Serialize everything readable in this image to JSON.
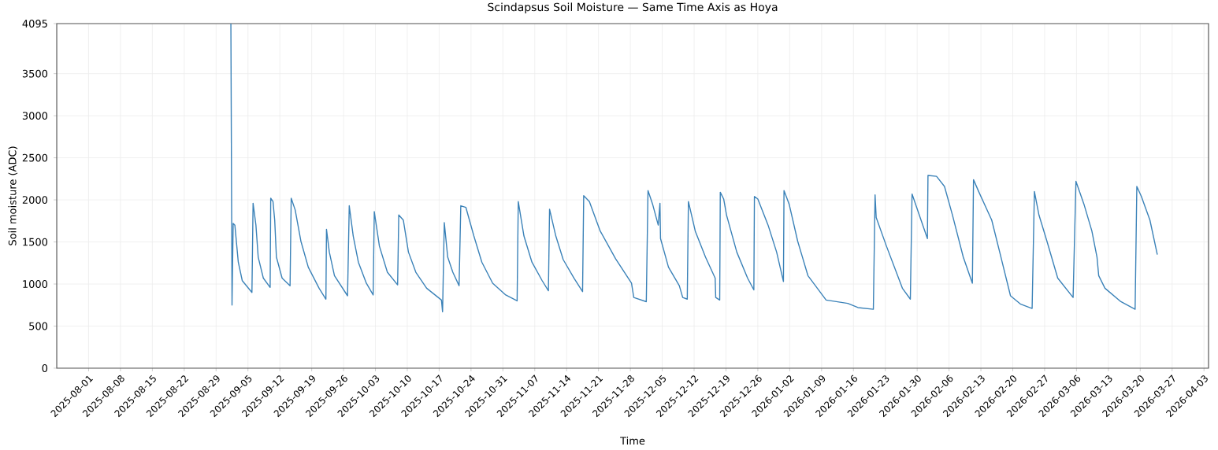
{
  "chart_data": {
    "type": "line",
    "title": "Scindapsus Soil Moisture — Same Time Axis as Hoya",
    "xlabel": "Time",
    "ylabel": "Soil moisture (ADC)",
    "color": "#3b82b8",
    "grid": true,
    "xlim": [
      "2025-07-25",
      "2026-04-04"
    ],
    "ylim": [
      0,
      4095
    ],
    "xticks": [
      "2025-08-01",
      "2025-08-08",
      "2025-08-15",
      "2025-08-22",
      "2025-08-29",
      "2025-09-05",
      "2025-09-12",
      "2025-09-19",
      "2025-09-26",
      "2025-10-03",
      "2025-10-10",
      "2025-10-17",
      "2025-10-24",
      "2025-10-31",
      "2025-11-07",
      "2025-11-14",
      "2025-11-21",
      "2025-11-28",
      "2025-12-05",
      "2025-12-12",
      "2025-12-19",
      "2025-12-26",
      "2026-01-02",
      "2026-01-09",
      "2026-01-16",
      "2026-01-23",
      "2026-01-30",
      "2026-02-06",
      "2026-02-13",
      "2026-02-20",
      "2026-02-27",
      "2026-03-06",
      "2026-03-13",
      "2026-03-20",
      "2026-03-27",
      "2026-04-03"
    ],
    "yticks": [
      0,
      500,
      1000,
      1500,
      2000,
      2500,
      3000,
      3500,
      4095
    ],
    "x": [
      "2025-09-01T06:00",
      "2025-09-01T12:00",
      "2025-09-01T18:00",
      "2025-09-02T03:00",
      "2025-09-02T21:00",
      "2025-09-03T18:00",
      "2025-09-05T21:00",
      "2025-09-06T03:00",
      "2025-09-06T18:00",
      "2025-09-07T06:00",
      "2025-09-08T09:00",
      "2025-09-09T21:00",
      "2025-09-10T00:00",
      "2025-09-10T12:00",
      "2025-09-10T21:00",
      "2025-09-11T06:00",
      "2025-09-12T12:00",
      "2025-09-14T06:00",
      "2025-09-14T12:00",
      "2025-09-15T09:00",
      "2025-09-16T15:00",
      "2025-09-18T06:00",
      "2025-09-20T15:00",
      "2025-09-22T03:00",
      "2025-09-22T06:00",
      "2025-09-22T21:00",
      "2025-09-24T00:00",
      "2025-09-26T21:00",
      "2025-09-27T06:00",
      "2025-09-28T03:00",
      "2025-09-29T06:00",
      "2025-10-01T00:00",
      "2025-10-02T12:00",
      "2025-10-02T18:00",
      "2025-10-03T21:00",
      "2025-10-05T15:00",
      "2025-10-07T21:00",
      "2025-10-08T03:00",
      "2025-10-09T03:00",
      "2025-10-10T06:00",
      "2025-10-11T21:00",
      "2025-10-14T06:00",
      "2025-10-17T12:00",
      "2025-10-17T18:00",
      "2025-10-18T03:00",
      "2025-10-18T21:00",
      "2025-10-20T00:00",
      "2025-10-21T09:00",
      "2025-10-21T18:00",
      "2025-10-22T21:00",
      "2025-10-24T15:00",
      "2025-10-26T09:00",
      "2025-10-28T18:00",
      "2025-10-31T15:00",
      "2025-11-03T03:00",
      "2025-11-03T09:00",
      "2025-11-04T15:00",
      "2025-11-06T09:00",
      "2025-11-08T15:00",
      "2025-11-10T00:00",
      "2025-11-10T06:00",
      "2025-11-11T15:00",
      "2025-11-13T06:00",
      "2025-11-15T15:00",
      "2025-11-17T12:00",
      "2025-11-17T18:00",
      "2025-11-19T00:00",
      "2025-11-21T09:00",
      "2025-11-24T18:00",
      "2025-11-28T06:00",
      "2025-11-28T18:00",
      "2025-12-01T12:00",
      "2025-12-01T21:00",
      "2025-12-02T21:00",
      "2025-12-04T03:00",
      "2025-12-04T12:00",
      "2025-12-04T15:00",
      "2025-12-06T09:00",
      "2025-12-08T18:00",
      "2025-12-09T12:00",
      "2025-12-10T12:00",
      "2025-12-10T18:00",
      "2025-12-12T06:00",
      "2025-12-14T12:00",
      "2025-12-16T15:00",
      "2025-12-16T18:00",
      "2025-12-17T15:00",
      "2025-12-17T18:00",
      "2025-12-18T12:00",
      "2025-12-19T03:00",
      "2025-12-21T09:00",
      "2025-12-23T18:00",
      "2025-12-25T03:00",
      "2025-12-25T06:00",
      "2025-12-26T00:00",
      "2025-12-28T06:00",
      "2025-12-30T03:00",
      "2025-12-31T15:00",
      "2025-12-31T18:00",
      "2026-01-01T21:00",
      "2026-01-03T18:00",
      "2026-01-06T00:00",
      "2026-01-10T00:00",
      "2026-01-14T18:00",
      "2026-01-17T00:00",
      "2026-01-20T09:00",
      "2026-01-20T18:00",
      "2026-01-21T00:00",
      "2026-01-23T06:00",
      "2026-01-26T18:00",
      "2026-01-28T12:00",
      "2026-01-28T21:00",
      "2026-02-01T06:00",
      "2026-02-01T09:00",
      "2026-02-03T06:00",
      "2026-02-05T00:00",
      "2026-02-06T18:00",
      "2026-02-09T03:00",
      "2026-02-11T03:00",
      "2026-02-11T09:00",
      "2026-02-12T12:00",
      "2026-02-15T09:00",
      "2026-02-17T03:00",
      "2026-02-19T12:00",
      "2026-02-21T18:00",
      "2026-02-24T06:00",
      "2026-02-24T18:00",
      "2026-02-25T18:00",
      "2026-02-27T12:00",
      "2026-03-01T21:00",
      "2026-03-05T06:00",
      "2026-03-05T21:00",
      "2026-03-07T15:00",
      "2026-03-09T09:00",
      "2026-03-10T12:00",
      "2026-03-10T21:00",
      "2026-03-12T06:00",
      "2026-03-15T18:00",
      "2026-03-18T21:00",
      "2026-03-19T06:00",
      "2026-03-20T06:00",
      "2026-03-22T03:00",
      "2026-03-23T18:00"
    ],
    "values": [
      4095,
      750,
      1720,
      1700,
      1260,
      1040,
      900,
      1960,
      1700,
      1320,
      1070,
      960,
      2020,
      1980,
      1760,
      1320,
      1070,
      980,
      2020,
      1880,
      1510,
      1200,
      950,
      820,
      1650,
      1380,
      1100,
      860,
      1930,
      1570,
      1260,
      1010,
      870,
      1860,
      1450,
      1140,
      990,
      1820,
      1760,
      1380,
      1140,
      950,
      810,
      670,
      1730,
      1320,
      1140,
      980,
      1930,
      1910,
      1570,
      1260,
      1010,
      870,
      800,
      1980,
      1570,
      1260,
      1040,
      920,
      1890,
      1570,
      1290,
      1070,
      910,
      2050,
      1980,
      1630,
      1300,
      1010,
      840,
      790,
      2110,
      1950,
      1700,
      1960,
      1540,
      1200,
      980,
      840,
      820,
      1980,
      1630,
      1320,
      1070,
      840,
      810,
      2090,
      2010,
      1820,
      1380,
      1070,
      930,
      2040,
      2010,
      1700,
      1380,
      1030,
      2110,
      1950,
      1510,
      1100,
      810,
      770,
      720,
      700,
      2060,
      1790,
      1450,
      950,
      820,
      2070,
      1540,
      2290,
      2280,
      2160,
      1820,
      1320,
      1010,
      2240,
      2100,
      1760,
      1380,
      860,
      760,
      710,
      2100,
      1820,
      1510,
      1070,
      840,
      2220,
      1950,
      1630,
      1320,
      1100,
      950,
      790,
      700,
      2160,
      2040,
      1760,
      1350
    ]
  }
}
